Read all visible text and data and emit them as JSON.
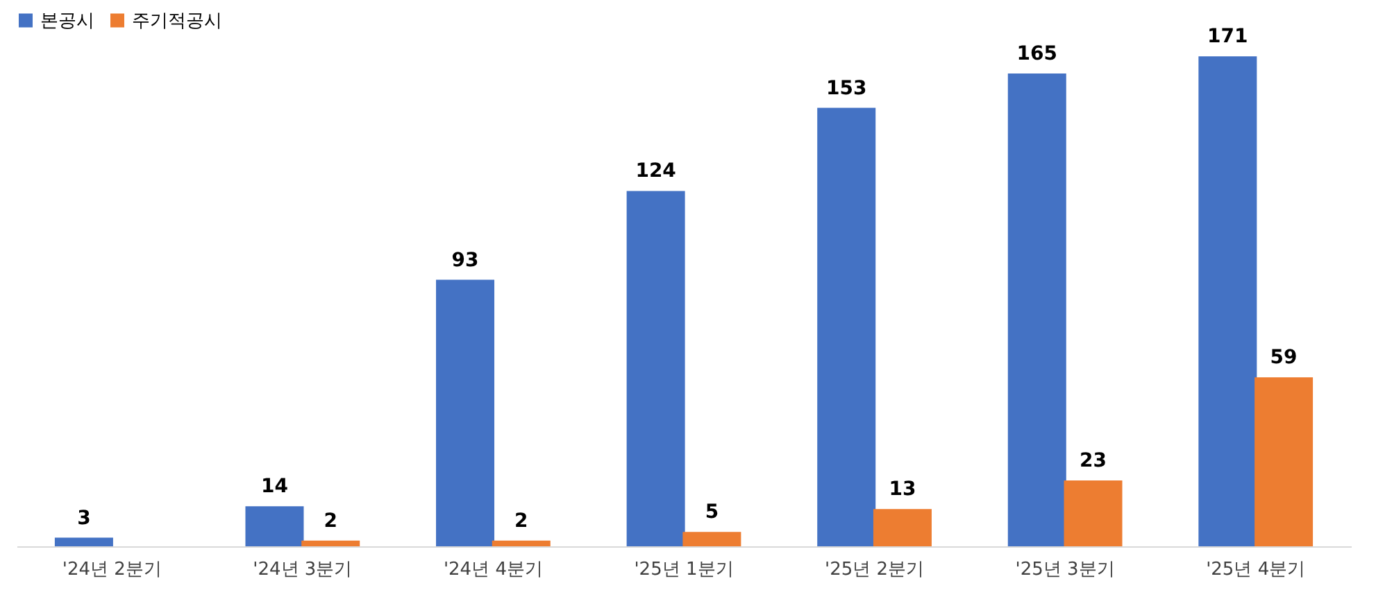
{
  "chart_data": {
    "type": "bar",
    "categories": [
      "'24년 2분기",
      "'24년 3분기",
      "'24년 4분기",
      "'25년 1분기",
      "'25년 2분기",
      "'25년 3분기",
      "'25년 4분기"
    ],
    "series": [
      {
        "name": "본공시",
        "color": "#4472c4",
        "values": [
          3,
          14,
          93,
          124,
          153,
          165,
          171
        ]
      },
      {
        "name": "주기적공시",
        "color": "#ed7d31",
        "values": [
          null,
          2,
          2,
          5,
          13,
          23,
          59
        ]
      }
    ],
    "data_labels": true,
    "legend": "top left",
    "grid": false
  }
}
